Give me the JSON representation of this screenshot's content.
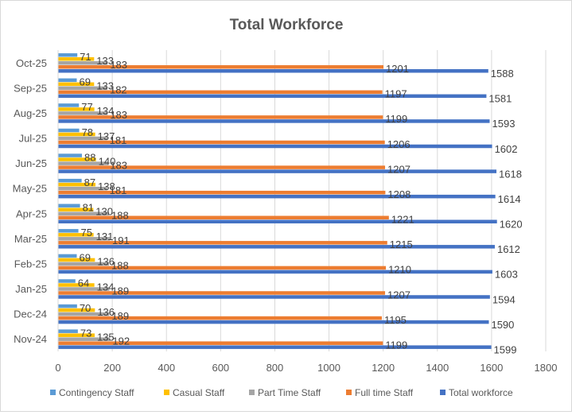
{
  "chart_data": {
    "type": "bar",
    "orientation": "horizontal",
    "title": "Total Workforce",
    "categories": [
      "Nov-24",
      "Dec-24",
      "Jan-25",
      "Feb-25",
      "Mar-25",
      "Apr-25",
      "May-25",
      "Jun-25",
      "Jul-25",
      "Aug-25",
      "Sep-25",
      "Oct-25"
    ],
    "series": [
      {
        "name": "Contingency Staff",
        "color": "#5B9BD5",
        "values": [
          73,
          70,
          64,
          69,
          75,
          81,
          87,
          88,
          78,
          77,
          69,
          71
        ]
      },
      {
        "name": "Casual Staff",
        "color": "#FFC000",
        "values": [
          135,
          136,
          134,
          136,
          131,
          130,
          138,
          140,
          137,
          134,
          133,
          133
        ]
      },
      {
        "name": "Part Time Staff",
        "color": "#A5A5A5",
        "values": [
          192,
          189,
          189,
          188,
          191,
          188,
          181,
          183,
          181,
          183,
          182,
          183
        ]
      },
      {
        "name": "Full time Staff",
        "color": "#ED7D31",
        "values": [
          1199,
          1195,
          1207,
          1210,
          1215,
          1221,
          1208,
          1207,
          1206,
          1199,
          1197,
          1201
        ]
      },
      {
        "name": "Total workforce",
        "color": "#4472C4",
        "values": [
          1599,
          1590,
          1594,
          1603,
          1612,
          1620,
          1614,
          1618,
          1602,
          1593,
          1581,
          1588
        ]
      }
    ],
    "xlim": [
      0,
      1800
    ],
    "xticks": [
      0,
      200,
      400,
      600,
      800,
      1000,
      1200,
      1400,
      1600,
      1800
    ],
    "grid": true,
    "data_labels": true,
    "legend": "bottom"
  }
}
